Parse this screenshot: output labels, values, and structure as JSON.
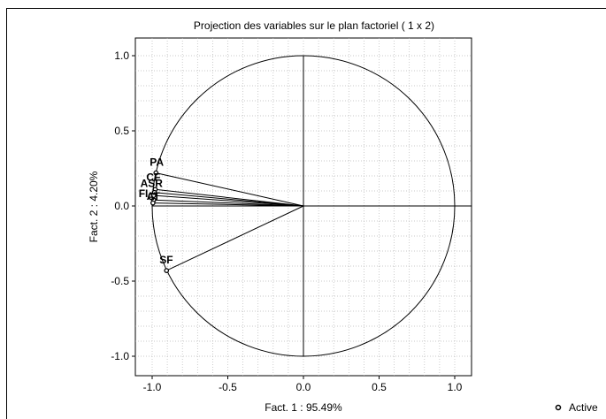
{
  "chart_data": {
    "type": "scatter",
    "title": "Projection des variables sur le plan factoriel (  1 x   2)",
    "xlabel": "Fact. 1  : 95.49%",
    "ylabel": "Fact. 2  :  4.20%",
    "xlim": [
      -1.1,
      1.1
    ],
    "ylim": [
      -1.1,
      1.1
    ],
    "xticks": [
      "-1.0",
      "-0.5",
      "0.0",
      "0.5",
      "1.0"
    ],
    "yticks": [
      "1.0",
      "0.5",
      "0.0",
      "-0.5",
      "-1.0"
    ],
    "xtick_values": [
      -1.0,
      -0.5,
      0.0,
      0.5,
      1.0
    ],
    "ytick_values": [
      1.0,
      0.5,
      0.0,
      -0.5,
      -1.0
    ],
    "grid": true,
    "unit_circle": true,
    "series": [
      {
        "name": "Active",
        "points": [
          {
            "label": "PA",
            "x": -0.975,
            "y": 0.22
          },
          {
            "label": "CF",
            "x": -0.98,
            "y": 0.11
          },
          {
            "label": "ASR",
            "x": -0.985,
            "y": 0.09
          },
          {
            "label": "FI",
            "x": -0.99,
            "y": 0.07
          },
          {
            "label": "AT",
            "x": -0.99,
            "y": 0.04
          },
          {
            "label": "C",
            "x": -0.995,
            "y": 0.02
          },
          {
            "label": "SF",
            "x": -0.905,
            "y": -0.43
          }
        ]
      }
    ],
    "legend": {
      "label": "Active",
      "position": "bottom-right"
    }
  }
}
